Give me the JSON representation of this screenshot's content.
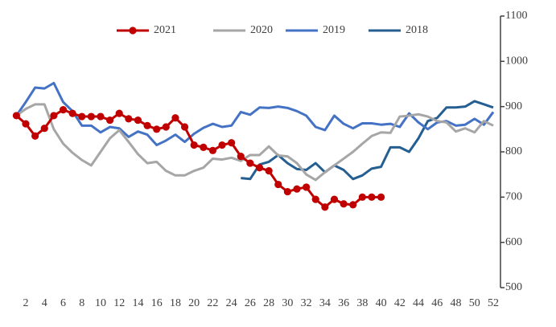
{
  "chart_data": {
    "type": "line",
    "categories": [
      null,
      2,
      null,
      4,
      null,
      6,
      null,
      8,
      null,
      10,
      null,
      12,
      null,
      14,
      null,
      16,
      null,
      18,
      null,
      20,
      null,
      22,
      null,
      24,
      null,
      26,
      null,
      28,
      null,
      30,
      null,
      32,
      null,
      34,
      null,
      36,
      null,
      38,
      null,
      40,
      null,
      42,
      null,
      44,
      null,
      46,
      null,
      48,
      null,
      50,
      null,
      52
    ],
    "series": [
      {
        "name": "2021",
        "color": "#c00000",
        "marker": true,
        "values": [
          880,
          862,
          835,
          852,
          880,
          893,
          885,
          878,
          878,
          878,
          870,
          885,
          873,
          870,
          858,
          850,
          855,
          875,
          855,
          815,
          810,
          803,
          815,
          820,
          790,
          775,
          765,
          758,
          728,
          712,
          718,
          722,
          695,
          678,
          695,
          685,
          683,
          700,
          700,
          700,
          null,
          null,
          null,
          null,
          null,
          null,
          null,
          null,
          null,
          null,
          null,
          null
        ]
      },
      {
        "name": "2020",
        "color": "#a6a6a6",
        "marker": false,
        "values": [
          880,
          895,
          905,
          905,
          850,
          818,
          798,
          782,
          770,
          800,
          830,
          848,
          822,
          795,
          775,
          778,
          758,
          748,
          748,
          758,
          765,
          785,
          783,
          787,
          780,
          793,
          793,
          812,
          792,
          790,
          775,
          750,
          738,
          755,
          770,
          785,
          800,
          818,
          835,
          843,
          842,
          878,
          880,
          883,
          878,
          868,
          865,
          845,
          852,
          843,
          868,
          858
        ]
      },
      {
        "name": "2019",
        "color": "#4472c4",
        "marker": false,
        "values": [
          880,
          910,
          942,
          940,
          952,
          910,
          890,
          858,
          858,
          843,
          855,
          852,
          833,
          845,
          838,
          815,
          825,
          838,
          822,
          840,
          853,
          862,
          855,
          858,
          888,
          882,
          898,
          897,
          900,
          897,
          890,
          880,
          855,
          848,
          880,
          862,
          852,
          863,
          863,
          860,
          862,
          855,
          885,
          865,
          850,
          865,
          868,
          858,
          860,
          873,
          860,
          888
        ]
      },
      {
        "name": "2018",
        "color": "#255e91",
        "marker": false,
        "values": [
          null,
          null,
          null,
          null,
          null,
          null,
          null,
          null,
          null,
          null,
          null,
          null,
          null,
          null,
          null,
          null,
          null,
          null,
          null,
          null,
          null,
          null,
          null,
          null,
          742,
          740,
          772,
          778,
          793,
          775,
          762,
          760,
          775,
          755,
          770,
          760,
          740,
          748,
          763,
          767,
          810,
          810,
          800,
          830,
          868,
          875,
          898,
          898,
          900,
          912,
          905,
          898
        ]
      }
    ],
    "ylim": [
      500,
      1100
    ],
    "yticks": [
      500,
      600,
      700,
      800,
      900,
      1000,
      1100
    ],
    "y_axis_side": "right",
    "legend": "top"
  }
}
